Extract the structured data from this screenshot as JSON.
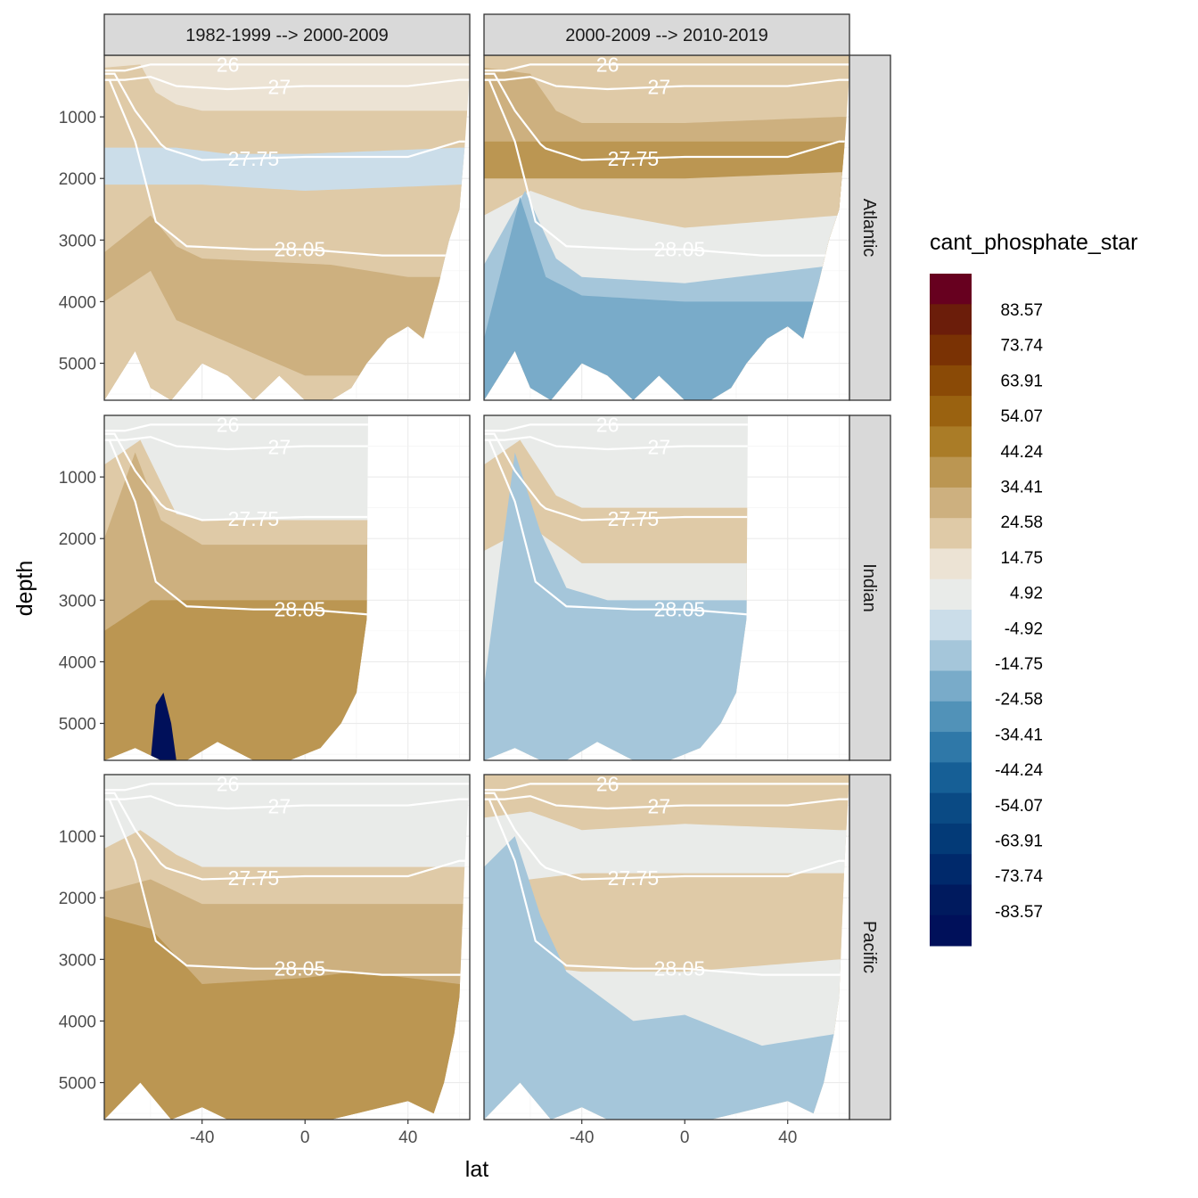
{
  "chart_data": {
    "type": "heatmap",
    "subtype": "filled-contour section, faceted",
    "xlabel": "lat",
    "ylabel": "depth",
    "x_ticks": [
      -40,
      0,
      40
    ],
    "x_range": [
      -78,
      64
    ],
    "y_ticks": [
      1000,
      2000,
      3000,
      4000,
      5000
    ],
    "y_range": [
      0,
      5600
    ],
    "y_reversed": true,
    "columns": [
      "1982-1999 --> 2000-2009",
      "2000-2009 --> 2010-2019"
    ],
    "rows": [
      "Atlantic",
      "Indian",
      "Pacific"
    ],
    "legend": {
      "title": "cant_phosphate_star",
      "position": "right",
      "breaks": [
        83.57,
        73.74,
        63.91,
        54.07,
        44.24,
        34.41,
        24.58,
        14.75,
        4.92,
        -4.92,
        -14.75,
        -24.58,
        -34.41,
        -44.24,
        -54.07,
        -63.91,
        -73.74,
        -83.57
      ],
      "colors": [
        "#67001f",
        "#6b1d0a",
        "#7a3204",
        "#8a4a06",
        "#9a6210",
        "#aa7c27",
        "#bb9652",
        "#cdb07f",
        "#dfcaa7",
        "#ece3d4",
        "#e9ebe9",
        "#cbdde9",
        "#a5c6da",
        "#79abc9",
        "#5192b8",
        "#2f78a8",
        "#165f96",
        "#0a4a84",
        "#033a77",
        "#00296b",
        "#001a5e",
        "#00105a"
      ]
    },
    "isopycnal_labels": [
      "26",
      "27",
      "27.75",
      "28.05"
    ],
    "panels": [
      {
        "row": "Atlantic",
        "column": "1982-1999 --> 2000-2009",
        "dominant_range": "4.92 to 24.58",
        "notable": "thin -4.92 to -14.75 band near 1500-2000 m"
      },
      {
        "row": "Atlantic",
        "column": "2000-2009 --> 2010-2019",
        "dominant_range": "-34.41 to 44.24",
        "notable": "negative -24.58 to -34.41 bottom water north of 0; positive 34.41-44.24 at 1500 m"
      },
      {
        "row": "Indian",
        "column": "1982-1999 --> 2000-2009",
        "dominant_range": "24.58 to 44.24",
        "notable": "small below -83.57 patch near -55 lat at 5000 m"
      },
      {
        "row": "Indian",
        "column": "2000-2009 --> 2010-2019",
        "dominant_range": "-24.58 to -14.75",
        "notable": "deep water below 2500 m negative"
      },
      {
        "row": "Pacific",
        "column": "1982-1999 --> 2000-2009",
        "dominant_range": "24.58 to 44.24",
        "notable": "34.41-44.24 at 3000-4000 m, 20-50 N"
      },
      {
        "row": "Pacific",
        "column": "2000-2009 --> 2010-2019",
        "dominant_range": "-24.58 to 24.58",
        "notable": "deep water negative, intermediate positive"
      }
    ]
  }
}
